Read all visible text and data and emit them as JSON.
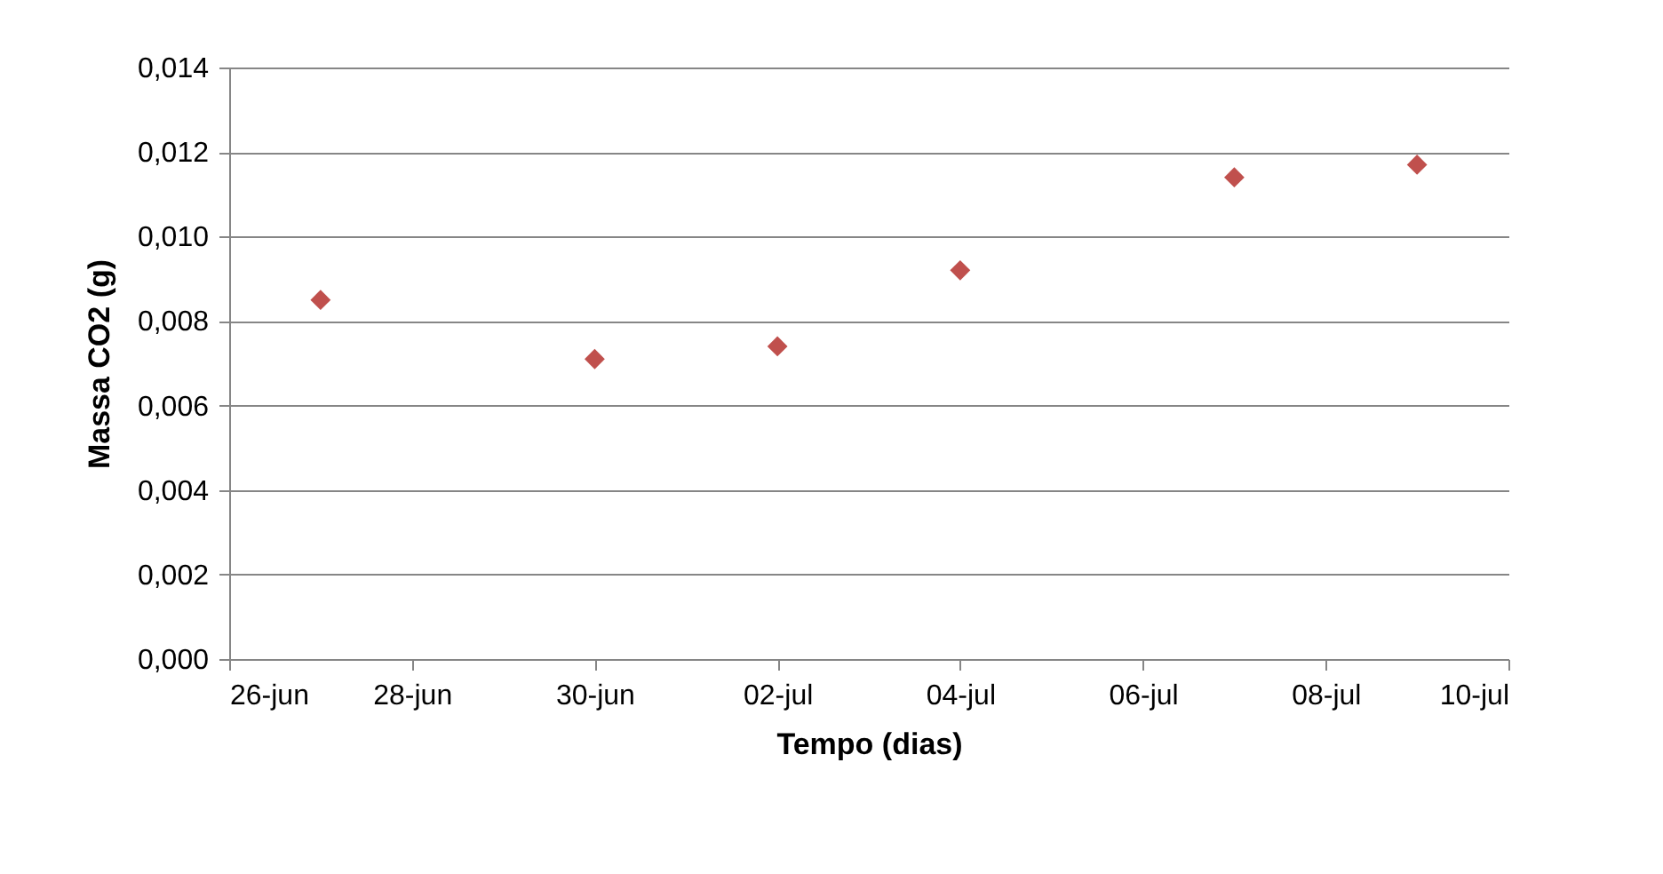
{
  "chart_data": {
    "type": "scatter",
    "xlabel": "Tempo (dias)",
    "ylabel": "Massa CO2 (g)",
    "x": [
      "--06-27",
      "--06-30",
      "--07-02",
      "--07-04",
      "--07-07",
      "--07-09"
    ],
    "series": [
      {
        "color": "#c0504d",
        "values": [
          0.0085,
          0.0071,
          0.0074,
          0.0092,
          0.0114,
          0.0117
        ]
      }
    ],
    "xlim": [
      "--06-26",
      "--07-10"
    ],
    "xticks": [
      {
        "value": "--06-26",
        "label": "26-jun"
      },
      {
        "value": "--06-28",
        "label": "28-jun"
      },
      {
        "value": "--06-30",
        "label": "30-jun"
      },
      {
        "value": "--07-02",
        "label": "02-jul"
      },
      {
        "value": "--07-04",
        "label": "04-jul"
      },
      {
        "value": "--07-06",
        "label": "06-jul"
      },
      {
        "value": "--07-08",
        "label": "08-jul"
      },
      {
        "value": "--07-10",
        "label": "10-jul"
      }
    ],
    "ylim": [
      0,
      0.014
    ],
    "yticks": [
      {
        "value": 0,
        "label": "0,000"
      },
      {
        "value": 0.002,
        "label": "0,002"
      },
      {
        "value": 0.004,
        "label": "0,004"
      },
      {
        "value": 0.006,
        "label": "0,006"
      },
      {
        "value": 0.008,
        "label": "0,008"
      },
      {
        "value": 0.01,
        "label": "0,010"
      },
      {
        "value": 0.012,
        "label": "0,012"
      },
      {
        "value": 0.014,
        "label": "0,014"
      }
    ],
    "grid": "y",
    "marker": "diamond"
  }
}
